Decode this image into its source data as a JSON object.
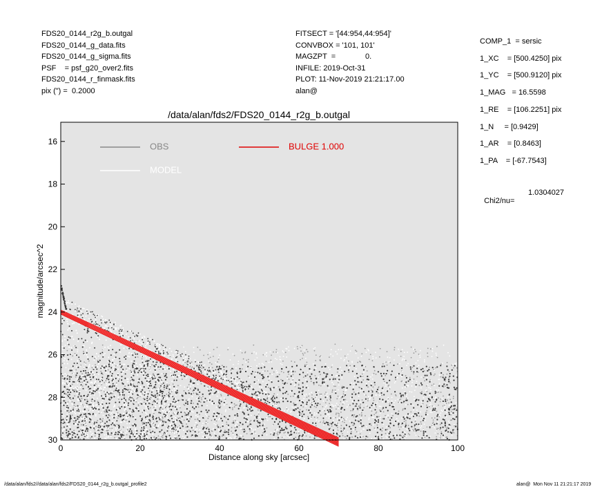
{
  "header_left": [
    "FDS20_0144_r2g_b.outgal",
    "FDS20_0144_g_data.fits",
    "FDS20_0144_g_sigma.fits",
    "PSF    = psf_g20_over2.fits",
    "FDS20_0144_r_finmask.fits",
    "pix (\") =  0.2000"
  ],
  "header_mid": [
    "FITSECT = '[44:954,44:954]'",
    "CONVBOX = '101, 101'",
    "MAGZPT  =              0.",
    "INFILE: 2019-Oct-31",
    "PLOT: 11-Nov-2019 21:21:17.00",
    "alan@"
  ],
  "header_right": [
    "COMP_1  = sersic",
    "1_XC    = [500.4250] pix",
    "1_YC    = [500.9120] pix",
    "1_MAG   = 16.5598",
    "1_RE    = [106.2251] pix",
    "1_N     = [0.9429]",
    "1_AR    = [0.8463]",
    "1_PA    = [-67.7543]"
  ],
  "chi2": {
    "label": "Chi2/nu=",
    "value": "1.0304027"
  },
  "footer": {
    "left": "/data/alan/fds2//data/alan/fds2/FDS20_0144_r2g_b.outgal_profile2",
    "right": "alan@  Mon Nov 11 21:21:17 2019"
  },
  "colors": {
    "plot_bg": "#e4e4e4",
    "obs": "#3a3a3a",
    "obs_light": "#ffffff",
    "model": "#ffffff",
    "bulge": "#e00000",
    "legend_obs": "#888888"
  },
  "chart_data": {
    "type": "scatter",
    "title": "/data/alan/fds2/FDS20_0144_r2g_b.outgal",
    "xlabel": "Distance along sky [arcsec]",
    "ylabel": "magnitude/arcsec^2",
    "xlim": [
      0,
      100
    ],
    "ylim": [
      30,
      15.1
    ],
    "y_inverted": true,
    "xticks": [
      0,
      20,
      40,
      60,
      80,
      100
    ],
    "yticks": [
      16,
      18,
      20,
      22,
      24,
      26,
      28,
      30
    ],
    "grid": false,
    "legend": [
      {
        "name": "OBS",
        "color": "#888888"
      },
      {
        "name": "MODEL",
        "color": "#ffffff"
      },
      {
        "name": "BULGE  1.000",
        "color": "#e00000"
      }
    ],
    "legend_placement": "top",
    "series": [
      {
        "name": "BULGE  1.000",
        "kind": "band",
        "x": [
          0,
          70
        ],
        "upper_y": [
          23.9,
          29.9
        ],
        "lower_y": [
          24.1,
          30.3
        ]
      },
      {
        "name": "OBS",
        "kind": "points",
        "features": [
          {
            "description": "steep core",
            "x": [
              0.1,
              1.5
            ],
            "y": [
              22.8,
              24.0
            ]
          },
          {
            "description": "noise floor",
            "x": [
              0,
              100
            ],
            "y": [
              25.5,
              30
            ]
          },
          {
            "description": "diffuse cloud",
            "x": [
              0,
              30
            ],
            "y": [
              24,
              30
            ]
          }
        ]
      }
    ]
  }
}
